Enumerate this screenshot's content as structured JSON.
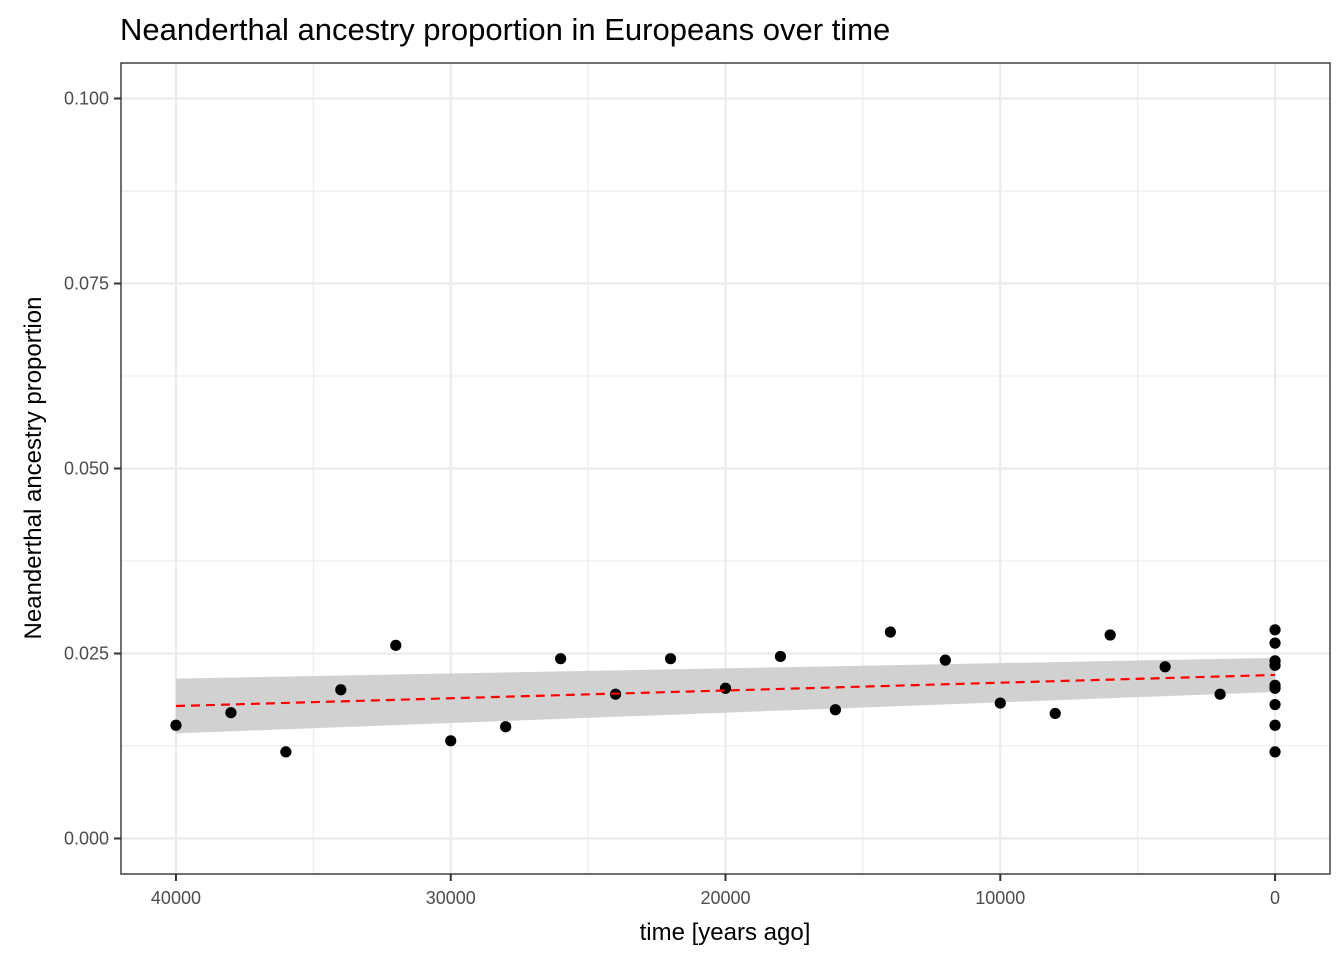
{
  "chart_data": {
    "type": "scatter",
    "title": "Neanderthal ancestry proportion in Europeans over time",
    "xlabel": "time [years ago]",
    "ylabel": "Neanderthal ancestry proportion",
    "x_reversed": true,
    "xlim": [
      42000,
      -2000
    ],
    "ylim": [
      -0.0048,
      0.1048
    ],
    "x_ticks": [
      40000,
      30000,
      20000,
      10000,
      0
    ],
    "x_tick_labels": [
      "40000",
      "30000",
      "20000",
      "10000",
      "0"
    ],
    "y_ticks": [
      0,
      0.025,
      0.05,
      0.075,
      0.1
    ],
    "y_tick_labels": [
      "0.000",
      "0.025",
      "0.050",
      "0.075",
      "0.100"
    ],
    "grid": true,
    "points": [
      {
        "x": 40000,
        "y": 0.0153
      },
      {
        "x": 38000,
        "y": 0.017
      },
      {
        "x": 36000,
        "y": 0.0117
      },
      {
        "x": 34000,
        "y": 0.0201
      },
      {
        "x": 32000,
        "y": 0.0261
      },
      {
        "x": 30000,
        "y": 0.0132
      },
      {
        "x": 28000,
        "y": 0.0151
      },
      {
        "x": 26000,
        "y": 0.0243
      },
      {
        "x": 24000,
        "y": 0.0195
      },
      {
        "x": 22000,
        "y": 0.0243
      },
      {
        "x": 20000,
        "y": 0.0203
      },
      {
        "x": 18000,
        "y": 0.0246
      },
      {
        "x": 16000,
        "y": 0.0174
      },
      {
        "x": 14000,
        "y": 0.0279
      },
      {
        "x": 12000,
        "y": 0.0241
      },
      {
        "x": 10000,
        "y": 0.0183
      },
      {
        "x": 8000,
        "y": 0.0169
      },
      {
        "x": 6000,
        "y": 0.0275
      },
      {
        "x": 4000,
        "y": 0.0232
      },
      {
        "x": 2000,
        "y": 0.0195
      },
      {
        "x": 0,
        "y": 0.0282
      },
      {
        "x": 0,
        "y": 0.0264
      },
      {
        "x": 0,
        "y": 0.024
      },
      {
        "x": 0,
        "y": 0.0234
      },
      {
        "x": 0,
        "y": 0.0207
      },
      {
        "x": 0,
        "y": 0.0203
      },
      {
        "x": 0,
        "y": 0.0181
      },
      {
        "x": 0,
        "y": 0.0153
      },
      {
        "x": 0,
        "y": 0.0117
      }
    ],
    "trend_line": {
      "style": "dashed",
      "color": "#ff0000",
      "x": [
        40000,
        0
      ],
      "y": [
        0.0179,
        0.0221
      ]
    },
    "confidence_band": {
      "color": "#cccccc",
      "x": [
        40000,
        0
      ],
      "lower": [
        0.0142,
        0.0198
      ],
      "upper": [
        0.0216,
        0.0244
      ]
    },
    "colors": {
      "points": "#000000",
      "trend": "#ff0000",
      "band": "#cccccc",
      "grid": "#ebebeb",
      "border": "#333333"
    }
  }
}
